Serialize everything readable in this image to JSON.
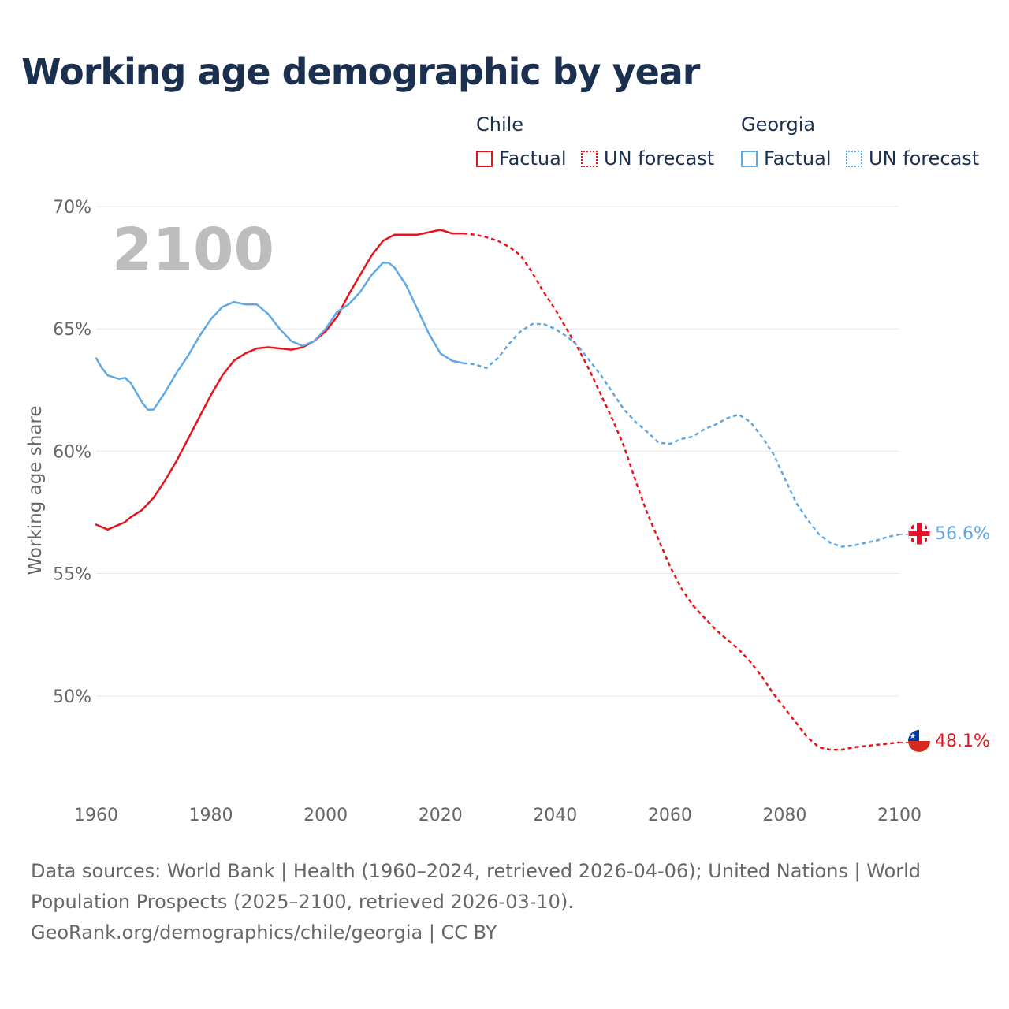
{
  "title": "Working age demographic by year",
  "legend": {
    "groups": [
      {
        "name": "Chile",
        "factual_label": "Factual",
        "forecast_label": "UN forecast",
        "color": "#e8141c"
      },
      {
        "name": "Georgia",
        "factual_label": "Factual",
        "forecast_label": "UN forecast",
        "color": "#5fa8e6"
      }
    ]
  },
  "year_watermark": "2100",
  "end_labels": {
    "chile": "48.1%",
    "georgia": "56.6%"
  },
  "flags": {
    "chile": "chile-flag-icon",
    "georgia": "georgia-flag-icon"
  },
  "footer": {
    "line1": "Data sources: World Bank | Health (1960–2024, retrieved 2026-04-06); United Nations | World",
    "line2": "Population Prospects (2025–2100, retrieved 2026-03-10).",
    "line3": "GeoRank.org/demographics/chile/georgia | CC BY"
  },
  "chart_data": {
    "type": "line",
    "title": "Working age demographic by year",
    "xlabel": "",
    "ylabel": "Working age share",
    "xlim": [
      1960,
      2100
    ],
    "ylim": [
      46,
      70
    ],
    "x_ticks": [
      1960,
      1980,
      2000,
      2020,
      2040,
      2060,
      2080,
      2100
    ],
    "x_tick_labels": [
      "1960",
      "1980",
      "2000",
      "2020",
      "2040",
      "2060",
      "2080",
      "2100"
    ],
    "y_ticks": [
      50,
      55,
      60,
      65,
      70
    ],
    "y_tick_labels": [
      "50%",
      "55%",
      "60%",
      "65%",
      "70%"
    ],
    "factual_until": 2024,
    "series": [
      {
        "name": "Chile",
        "color": "#e8141c",
        "points": [
          [
            1960,
            57.0
          ],
          [
            1962,
            56.8
          ],
          [
            1965,
            57.1
          ],
          [
            1966,
            57.3
          ],
          [
            1968,
            57.6
          ],
          [
            1970,
            58.1
          ],
          [
            1972,
            58.8
          ],
          [
            1974,
            59.6
          ],
          [
            1976,
            60.5
          ],
          [
            1978,
            61.4
          ],
          [
            1980,
            62.3
          ],
          [
            1982,
            63.1
          ],
          [
            1984,
            63.7
          ],
          [
            1986,
            64.0
          ],
          [
            1988,
            64.2
          ],
          [
            1990,
            64.25
          ],
          [
            1992,
            64.2
          ],
          [
            1994,
            64.15
          ],
          [
            1996,
            64.25
          ],
          [
            1998,
            64.5
          ],
          [
            2000,
            64.9
          ],
          [
            2002,
            65.5
          ],
          [
            2004,
            66.4
          ],
          [
            2006,
            67.2
          ],
          [
            2008,
            68.0
          ],
          [
            2010,
            68.6
          ],
          [
            2012,
            68.85
          ],
          [
            2014,
            68.85
          ],
          [
            2016,
            68.85
          ],
          [
            2018,
            68.95
          ],
          [
            2020,
            69.05
          ],
          [
            2022,
            68.9
          ],
          [
            2024,
            68.9
          ],
          [
            2026,
            68.85
          ],
          [
            2028,
            68.75
          ],
          [
            2030,
            68.6
          ],
          [
            2032,
            68.35
          ],
          [
            2034,
            68.0
          ],
          [
            2036,
            67.3
          ],
          [
            2038,
            66.5
          ],
          [
            2040,
            65.8
          ],
          [
            2042,
            65.0
          ],
          [
            2044,
            64.2
          ],
          [
            2046,
            63.3
          ],
          [
            2048,
            62.3
          ],
          [
            2050,
            61.3
          ],
          [
            2052,
            60.2
          ],
          [
            2054,
            58.8
          ],
          [
            2056,
            57.5
          ],
          [
            2058,
            56.4
          ],
          [
            2060,
            55.3
          ],
          [
            2062,
            54.4
          ],
          [
            2064,
            53.7
          ],
          [
            2066,
            53.2
          ],
          [
            2068,
            52.7
          ],
          [
            2070,
            52.3
          ],
          [
            2072,
            51.9
          ],
          [
            2074,
            51.4
          ],
          [
            2076,
            50.8
          ],
          [
            2078,
            50.1
          ],
          [
            2080,
            49.5
          ],
          [
            2082,
            48.9
          ],
          [
            2084,
            48.3
          ],
          [
            2086,
            47.9
          ],
          [
            2088,
            47.8
          ],
          [
            2090,
            47.8
          ],
          [
            2092,
            47.9
          ],
          [
            2094,
            47.95
          ],
          [
            2096,
            48.0
          ],
          [
            2098,
            48.05
          ],
          [
            2100,
            48.1
          ]
        ]
      },
      {
        "name": "Georgia",
        "color": "#5fa8e6",
        "points": [
          [
            1960,
            63.8
          ],
          [
            1961,
            63.4
          ],
          [
            1962,
            63.1
          ],
          [
            1964,
            62.95
          ],
          [
            1965,
            63.0
          ],
          [
            1966,
            62.8
          ],
          [
            1968,
            62.0
          ],
          [
            1969,
            61.7
          ],
          [
            1970,
            61.7
          ],
          [
            1972,
            62.4
          ],
          [
            1974,
            63.2
          ],
          [
            1976,
            63.9
          ],
          [
            1978,
            64.7
          ],
          [
            1980,
            65.4
          ],
          [
            1982,
            65.9
          ],
          [
            1984,
            66.1
          ],
          [
            1986,
            66.0
          ],
          [
            1988,
            66.0
          ],
          [
            1990,
            65.6
          ],
          [
            1992,
            65.0
          ],
          [
            1994,
            64.5
          ],
          [
            1996,
            64.3
          ],
          [
            1998,
            64.5
          ],
          [
            2000,
            65.0
          ],
          [
            2002,
            65.7
          ],
          [
            2004,
            66.0
          ],
          [
            2006,
            66.5
          ],
          [
            2008,
            67.2
          ],
          [
            2010,
            67.7
          ],
          [
            2011,
            67.7
          ],
          [
            2012,
            67.5
          ],
          [
            2014,
            66.8
          ],
          [
            2016,
            65.8
          ],
          [
            2018,
            64.8
          ],
          [
            2020,
            64.0
          ],
          [
            2022,
            63.7
          ],
          [
            2024,
            63.6
          ],
          [
            2026,
            63.55
          ],
          [
            2028,
            63.4
          ],
          [
            2030,
            63.8
          ],
          [
            2032,
            64.4
          ],
          [
            2034,
            64.9
          ],
          [
            2036,
            65.2
          ],
          [
            2038,
            65.2
          ],
          [
            2040,
            65.0
          ],
          [
            2042,
            64.7
          ],
          [
            2044,
            64.3
          ],
          [
            2046,
            63.7
          ],
          [
            2048,
            63.1
          ],
          [
            2050,
            62.4
          ],
          [
            2052,
            61.7
          ],
          [
            2054,
            61.2
          ],
          [
            2056,
            60.8
          ],
          [
            2058,
            60.35
          ],
          [
            2060,
            60.3
          ],
          [
            2062,
            60.5
          ],
          [
            2064,
            60.6
          ],
          [
            2066,
            60.9
          ],
          [
            2068,
            61.1
          ],
          [
            2070,
            61.35
          ],
          [
            2072,
            61.5
          ],
          [
            2074,
            61.2
          ],
          [
            2076,
            60.6
          ],
          [
            2078,
            59.9
          ],
          [
            2080,
            58.9
          ],
          [
            2082,
            57.9
          ],
          [
            2084,
            57.2
          ],
          [
            2086,
            56.6
          ],
          [
            2088,
            56.25
          ],
          [
            2090,
            56.1
          ],
          [
            2092,
            56.15
          ],
          [
            2094,
            56.25
          ],
          [
            2096,
            56.35
          ],
          [
            2098,
            56.5
          ],
          [
            2100,
            56.6
          ]
        ]
      }
    ]
  }
}
